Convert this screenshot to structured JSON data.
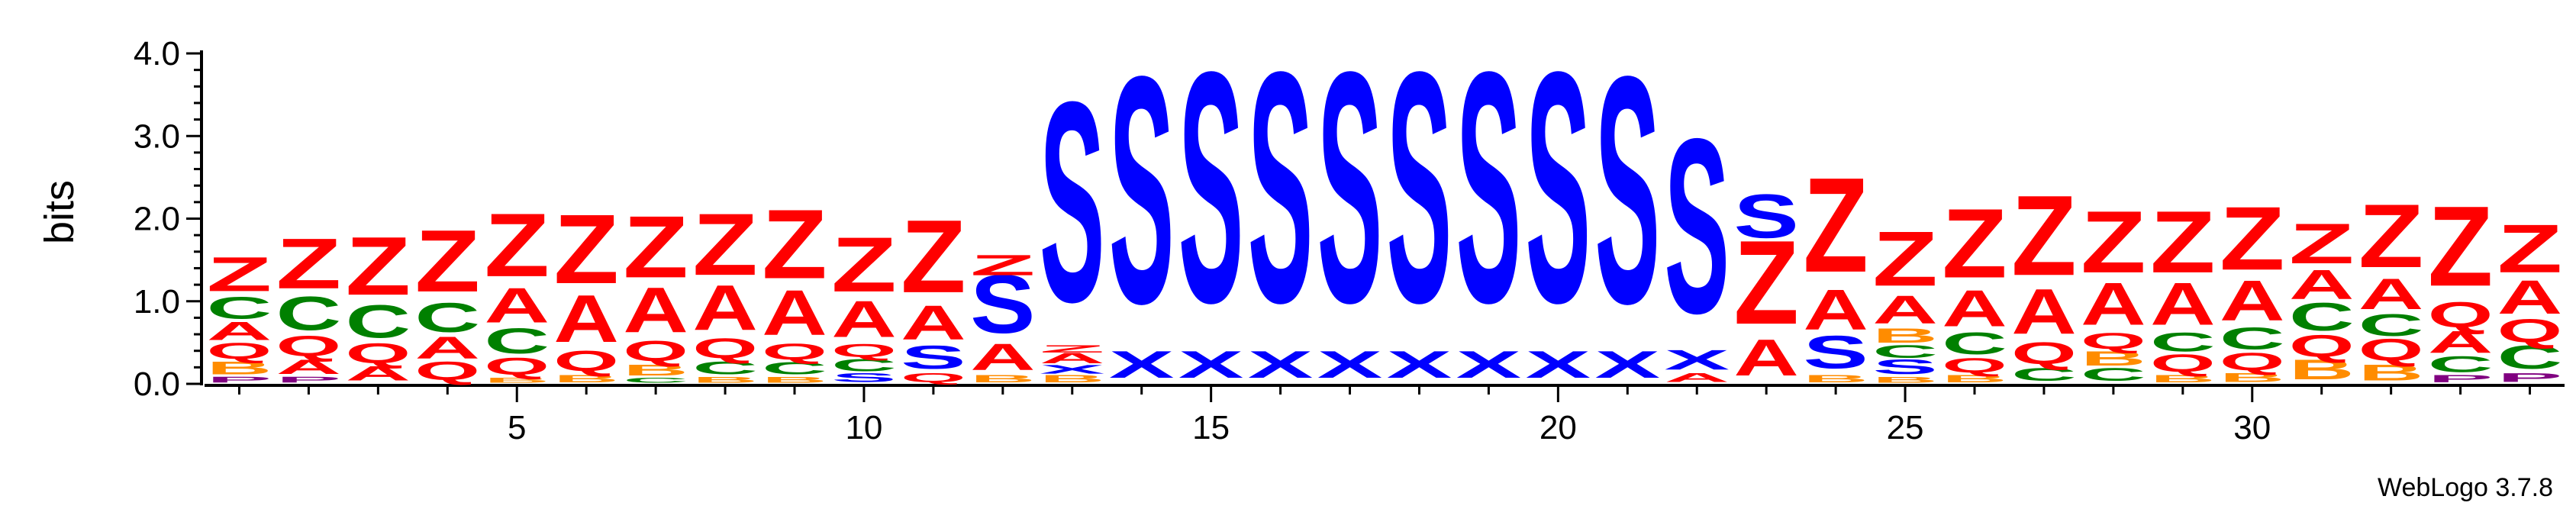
{
  "chart_data": {
    "type": "sequence-logo",
    "ylabel": "bits",
    "ylim": [
      0,
      4.0
    ],
    "y_ticks": [
      "0.0",
      "1.0",
      "2.0",
      "3.0",
      "4.0"
    ],
    "x_ticks": [
      5,
      10,
      15,
      20,
      25,
      30
    ],
    "positions_range": [
      1,
      34
    ],
    "credit": "WebLogo 3.7.8",
    "colors": {
      "Z": "#ff0000",
      "S": "#0000ff",
      "X": "#0000ff",
      "A": "#ff0000",
      "C": "#008000",
      "Q": "#ff0000",
      "B": "#ff8c00",
      "P": "#800080"
    },
    "columns": [
      {
        "pos": 1,
        "stack": [
          [
            "P",
            0.08
          ],
          [
            "B",
            0.18
          ],
          [
            "Q",
            0.22
          ],
          [
            "A",
            0.25
          ],
          [
            "C",
            0.3
          ],
          [
            "Z",
            0.47
          ]
        ]
      },
      {
        "pos": 2,
        "stack": [
          [
            "P",
            0.08
          ],
          [
            "A",
            0.2
          ],
          [
            "Q",
            0.28
          ],
          [
            "C",
            0.46
          ],
          [
            "Z",
            0.69
          ]
        ]
      },
      {
        "pos": 3,
        "stack": [
          [
            "A",
            0.2
          ],
          [
            "Q",
            0.27
          ],
          [
            "C",
            0.45
          ],
          [
            "Z",
            0.8
          ]
        ]
      },
      {
        "pos": 4,
        "stack": [
          [
            "Q",
            0.25
          ],
          [
            "A",
            0.3
          ],
          [
            "C",
            0.4
          ],
          [
            "Z",
            0.85
          ]
        ]
      },
      {
        "pos": 5,
        "stack": [
          [
            "B",
            0.07
          ],
          [
            "Q",
            0.23
          ],
          [
            "C",
            0.35
          ],
          [
            "A",
            0.48
          ],
          [
            "Z",
            0.87
          ]
        ]
      },
      {
        "pos": 6,
        "stack": [
          [
            "B",
            0.1
          ],
          [
            "Q",
            0.28
          ],
          [
            "A",
            0.65
          ],
          [
            "Z",
            0.95
          ]
        ]
      },
      {
        "pos": 7,
        "stack": [
          [
            "C",
            0.07
          ],
          [
            "B",
            0.15
          ],
          [
            "Q",
            0.28
          ],
          [
            "A",
            0.62
          ],
          [
            "Z",
            0.85
          ]
        ]
      },
      {
        "pos": 8,
        "stack": [
          [
            "B",
            0.08
          ],
          [
            "C",
            0.18
          ],
          [
            "Q",
            0.27
          ],
          [
            "A",
            0.62
          ],
          [
            "Z",
            0.85
          ]
        ]
      },
      {
        "pos": 9,
        "stack": [
          [
            "B",
            0.08
          ],
          [
            "C",
            0.17
          ],
          [
            "Q",
            0.22
          ],
          [
            "A",
            0.62
          ],
          [
            "Z",
            0.95
          ]
        ]
      },
      {
        "pos": 10,
        "stack": [
          [
            "S",
            0.12
          ],
          [
            "C",
            0.17
          ],
          [
            "Q",
            0.18
          ],
          [
            "A",
            0.5
          ],
          [
            "Z",
            0.75
          ]
        ]
      },
      {
        "pos": 11,
        "stack": [
          [
            "Q",
            0.12
          ],
          [
            "S",
            0.32
          ],
          [
            "A",
            0.47
          ],
          [
            "Z",
            1.0
          ]
        ]
      },
      {
        "pos": 12,
        "stack": [
          [
            "B",
            0.1
          ],
          [
            "A",
            0.36
          ],
          [
            "S",
            0.8
          ],
          [
            "Z",
            0.28
          ]
        ]
      },
      {
        "pos": 13,
        "stack": [
          [
            "B",
            0.1
          ],
          [
            "X",
            0.12
          ],
          [
            "A",
            0.14
          ],
          [
            "Z",
            0.1
          ],
          [
            "S",
            2.75
          ]
        ]
      },
      {
        "pos": 14,
        "stack": [
          [
            "X",
            0.37
          ],
          [
            "S",
            3.12
          ]
        ]
      },
      {
        "pos": 15,
        "stack": [
          [
            "X",
            0.37
          ],
          [
            "S",
            3.17
          ]
        ]
      },
      {
        "pos": 16,
        "stack": [
          [
            "X",
            0.37
          ],
          [
            "S",
            3.17
          ]
        ]
      },
      {
        "pos": 17,
        "stack": [
          [
            "X",
            0.37
          ],
          [
            "S",
            3.17
          ]
        ]
      },
      {
        "pos": 18,
        "stack": [
          [
            "X",
            0.37
          ],
          [
            "S",
            3.17
          ]
        ]
      },
      {
        "pos": 19,
        "stack": [
          [
            "X",
            0.37
          ],
          [
            "S",
            3.17
          ]
        ]
      },
      {
        "pos": 20,
        "stack": [
          [
            "X",
            0.37
          ],
          [
            "S",
            3.17
          ]
        ]
      },
      {
        "pos": 21,
        "stack": [
          [
            "X",
            0.37
          ],
          [
            "S",
            3.12
          ]
        ]
      },
      {
        "pos": 22,
        "stack": [
          [
            "A",
            0.12
          ],
          [
            "X",
            0.27
          ],
          [
            "S",
            2.4
          ]
        ]
      },
      {
        "pos": 23,
        "stack": [
          [
            "A",
            0.5
          ],
          [
            "Z",
            1.15
          ],
          [
            "S",
            0.6
          ]
        ]
      },
      {
        "pos": 24,
        "stack": [
          [
            "B",
            0.1
          ],
          [
            "S",
            0.45
          ],
          [
            "A",
            0.55
          ],
          [
            "Z",
            1.3
          ]
        ]
      },
      {
        "pos": 25,
        "stack": [
          [
            "B",
            0.08
          ],
          [
            "S",
            0.2
          ],
          [
            "C",
            0.18
          ],
          [
            "B",
            0.2
          ],
          [
            "A",
            0.38
          ],
          [
            "Z",
            0.75
          ]
        ]
      },
      {
        "pos": 26,
        "stack": [
          [
            "B",
            0.1
          ],
          [
            "Q",
            0.2
          ],
          [
            "C",
            0.3
          ],
          [
            "A",
            0.5
          ],
          [
            "Z",
            0.95
          ]
        ]
      },
      {
        "pos": 27,
        "stack": [
          [
            "C",
            0.18
          ],
          [
            "Q",
            0.3
          ],
          [
            "A",
            0.62
          ],
          [
            "Z",
            1.1
          ]
        ]
      },
      {
        "pos": 28,
        "stack": [
          [
            "C",
            0.18
          ],
          [
            "B",
            0.2
          ],
          [
            "Q",
            0.22
          ],
          [
            "A",
            0.58
          ],
          [
            "Z",
            0.85
          ]
        ]
      },
      {
        "pos": 29,
        "stack": [
          [
            "B",
            0.1
          ],
          [
            "Q",
            0.24
          ],
          [
            "C",
            0.26
          ],
          [
            "A",
            0.58
          ],
          [
            "Z",
            0.85
          ]
        ]
      },
      {
        "pos": 30,
        "stack": [
          [
            "B",
            0.12
          ],
          [
            "Q",
            0.24
          ],
          [
            "C",
            0.3
          ],
          [
            "A",
            0.55
          ],
          [
            "Z",
            0.87
          ]
        ]
      },
      {
        "pos": 31,
        "stack": [
          [
            "B",
            0.27
          ],
          [
            "Q",
            0.3
          ],
          [
            "C",
            0.38
          ],
          [
            "A",
            0.4
          ],
          [
            "Z",
            0.55
          ]
        ]
      },
      {
        "pos": 32,
        "stack": [
          [
            "B",
            0.22
          ],
          [
            "Q",
            0.3
          ],
          [
            "C",
            0.3
          ],
          [
            "A",
            0.42
          ],
          [
            "Z",
            0.87
          ]
        ]
      },
      {
        "pos": 33,
        "stack": [
          [
            "P",
            0.1
          ],
          [
            "C",
            0.22
          ],
          [
            "A",
            0.3
          ],
          [
            "Q",
            0.35
          ],
          [
            "Z",
            1.1
          ]
        ]
      },
      {
        "pos": 34,
        "stack": [
          [
            "P",
            0.12
          ],
          [
            "C",
            0.32
          ],
          [
            "Q",
            0.32
          ],
          [
            "A",
            0.46
          ],
          [
            "Z",
            0.66
          ]
        ]
      }
    ]
  }
}
